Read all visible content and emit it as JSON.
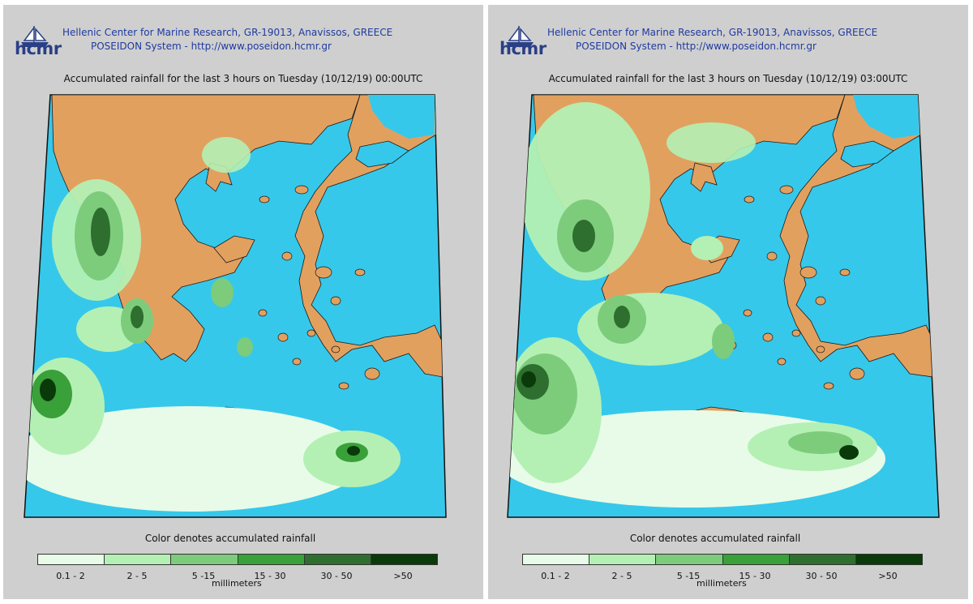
{
  "colors": {
    "panel_bg": "#cfcfcf",
    "sea": "#36c8ea",
    "land": "#e2a05f",
    "coast": "#1a1a1a",
    "scale": [
      "#e8fbe8",
      "#b4f0b4",
      "#7ccc7c",
      "#3aa03a",
      "#2e6e2e",
      "#0a3a0a"
    ]
  },
  "panels": [
    {
      "logo_text": "hcmr",
      "header_line1": "Hellenic Center for Marine Research, GR-19013, Anavissos, GREECE",
      "header_line2": "POSEIDON System - http://www.poseidon.hcmr.gr",
      "title": "Accumulated rainfall for the last 3 hours on Tuesday (10/12/19) 00:00UTC",
      "legend_title": "Color denotes accumulated rainfall",
      "legend_unit": "millimeters",
      "legend_labels": [
        "0.1 - 2",
        "2 - 5",
        "5 -15",
        "15 - 30",
        "30 - 50",
        ">50"
      ]
    },
    {
      "logo_text": "hcmr",
      "header_line1": "Hellenic Center for Marine Research, GR-19013, Anavissos, GREECE",
      "header_line2": "POSEIDON System - http://www.poseidon.hcmr.gr",
      "title": "Accumulated rainfall for the last 3 hours on Tuesday (10/12/19) 03:00UTC",
      "legend_title": "Color denotes accumulated rainfall",
      "legend_unit": "millimeters",
      "legend_labels": [
        "0.1 - 2",
        "2 - 5",
        "5 -15",
        "15 - 30",
        "30 - 50",
        ">50"
      ]
    }
  ]
}
